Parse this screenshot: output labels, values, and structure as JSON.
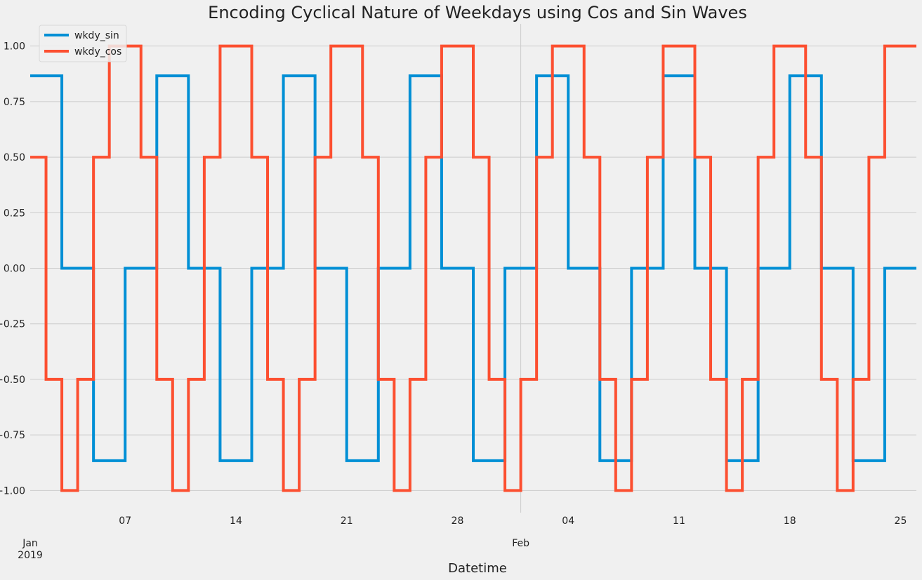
{
  "chart_data": {
    "type": "line",
    "title": "Encoding Cyclical Nature of Weekdays using Cos and Sin Waves",
    "xlabel": "Datetime",
    "ylabel": "",
    "x_start": "2019-01-01",
    "x_end": "2019-02-26",
    "ylim": [
      -1.1,
      1.1
    ],
    "yticks": [
      1.0,
      0.75,
      0.5,
      0.25,
      0.0,
      -0.25,
      -0.5,
      -0.75,
      -1.0
    ],
    "ytick_labels": [
      "1.00",
      "0.75",
      "0.50",
      "0.25",
      "0.00",
      "−0.25",
      "−0.50",
      "−0.75",
      "−1.00"
    ],
    "xticks": [
      {
        "date": "2019-01-01",
        "label": "Jan",
        "sublabel": "2019",
        "major": true
      },
      {
        "date": "2019-01-07",
        "label": "07",
        "major": false
      },
      {
        "date": "2019-01-14",
        "label": "14",
        "major": false
      },
      {
        "date": "2019-01-21",
        "label": "21",
        "major": false
      },
      {
        "date": "2019-01-28",
        "label": "28",
        "major": false
      },
      {
        "date": "2019-02-01",
        "label": "Feb",
        "major": true
      },
      {
        "date": "2019-02-04",
        "label": "04",
        "major": false
      },
      {
        "date": "2019-02-11",
        "label": "11",
        "major": false
      },
      {
        "date": "2019-02-18",
        "label": "18",
        "major": false
      },
      {
        "date": "2019-02-25",
        "label": "25",
        "major": false
      }
    ],
    "grid": true,
    "legend_position": "top-left",
    "step": "post",
    "x": [
      "2019-01-01",
      "2019-01-02",
      "2019-01-03",
      "2019-01-04",
      "2019-01-05",
      "2019-01-06",
      "2019-01-07",
      "2019-01-08",
      "2019-01-09",
      "2019-01-10",
      "2019-01-11",
      "2019-01-12",
      "2019-01-13",
      "2019-01-14",
      "2019-01-15",
      "2019-01-16",
      "2019-01-17",
      "2019-01-18",
      "2019-01-19",
      "2019-01-20",
      "2019-01-21",
      "2019-01-22",
      "2019-01-23",
      "2019-01-24",
      "2019-01-25",
      "2019-01-26",
      "2019-01-27",
      "2019-01-28",
      "2019-01-29",
      "2019-01-30",
      "2019-01-31",
      "2019-02-01",
      "2019-02-02",
      "2019-02-03",
      "2019-02-04",
      "2019-02-05",
      "2019-02-06",
      "2019-02-07",
      "2019-02-08",
      "2019-02-09",
      "2019-02-10",
      "2019-02-11",
      "2019-02-12",
      "2019-02-13",
      "2019-02-14",
      "2019-02-15",
      "2019-02-16",
      "2019-02-17",
      "2019-02-18",
      "2019-02-19",
      "2019-02-20",
      "2019-02-21",
      "2019-02-22",
      "2019-02-23",
      "2019-02-24",
      "2019-02-25",
      "2019-02-26"
    ],
    "series": [
      {
        "name": "wkdy_sin",
        "color": "#008fd5",
        "values": [
          0.866,
          0.866,
          0.0,
          0.0,
          -0.866,
          -0.866,
          0.0,
          0.0,
          0.866,
          0.866,
          0.0,
          0.0,
          -0.866,
          -0.866,
          0.0,
          0.0,
          0.866,
          0.866,
          0.0,
          0.0,
          -0.866,
          -0.866,
          0.0,
          0.0,
          0.866,
          0.866,
          0.0,
          0.0,
          -0.866,
          -0.866,
          0.0,
          0.0,
          0.866,
          0.866,
          0.0,
          0.0,
          -0.866,
          -0.866,
          0.0,
          0.0,
          0.866,
          0.866,
          0.0,
          0.0,
          -0.866,
          -0.866,
          0.0,
          0.0,
          0.866,
          0.866,
          0.0,
          0.0,
          -0.866,
          -0.866,
          0.0,
          0.0,
          0.0
        ]
      },
      {
        "name": "wkdy_cos",
        "color": "#fc4f30",
        "values": [
          0.5,
          -0.5,
          -1.0,
          -0.5,
          0.5,
          1.0,
          1.0,
          0.5,
          -0.5,
          -1.0,
          -0.5,
          0.5,
          1.0,
          1.0,
          0.5,
          -0.5,
          -1.0,
          -0.5,
          0.5,
          1.0,
          1.0,
          0.5,
          -0.5,
          -1.0,
          -0.5,
          0.5,
          1.0,
          1.0,
          0.5,
          -0.5,
          -1.0,
          -0.5,
          0.5,
          1.0,
          1.0,
          0.5,
          -0.5,
          -1.0,
          -0.5,
          0.5,
          1.0,
          1.0,
          0.5,
          -0.5,
          -1.0,
          -0.5,
          0.5,
          1.0,
          1.0,
          0.5,
          -0.5,
          -1.0,
          -0.5,
          0.5,
          1.0,
          1.0,
          1.0
        ]
      }
    ]
  }
}
